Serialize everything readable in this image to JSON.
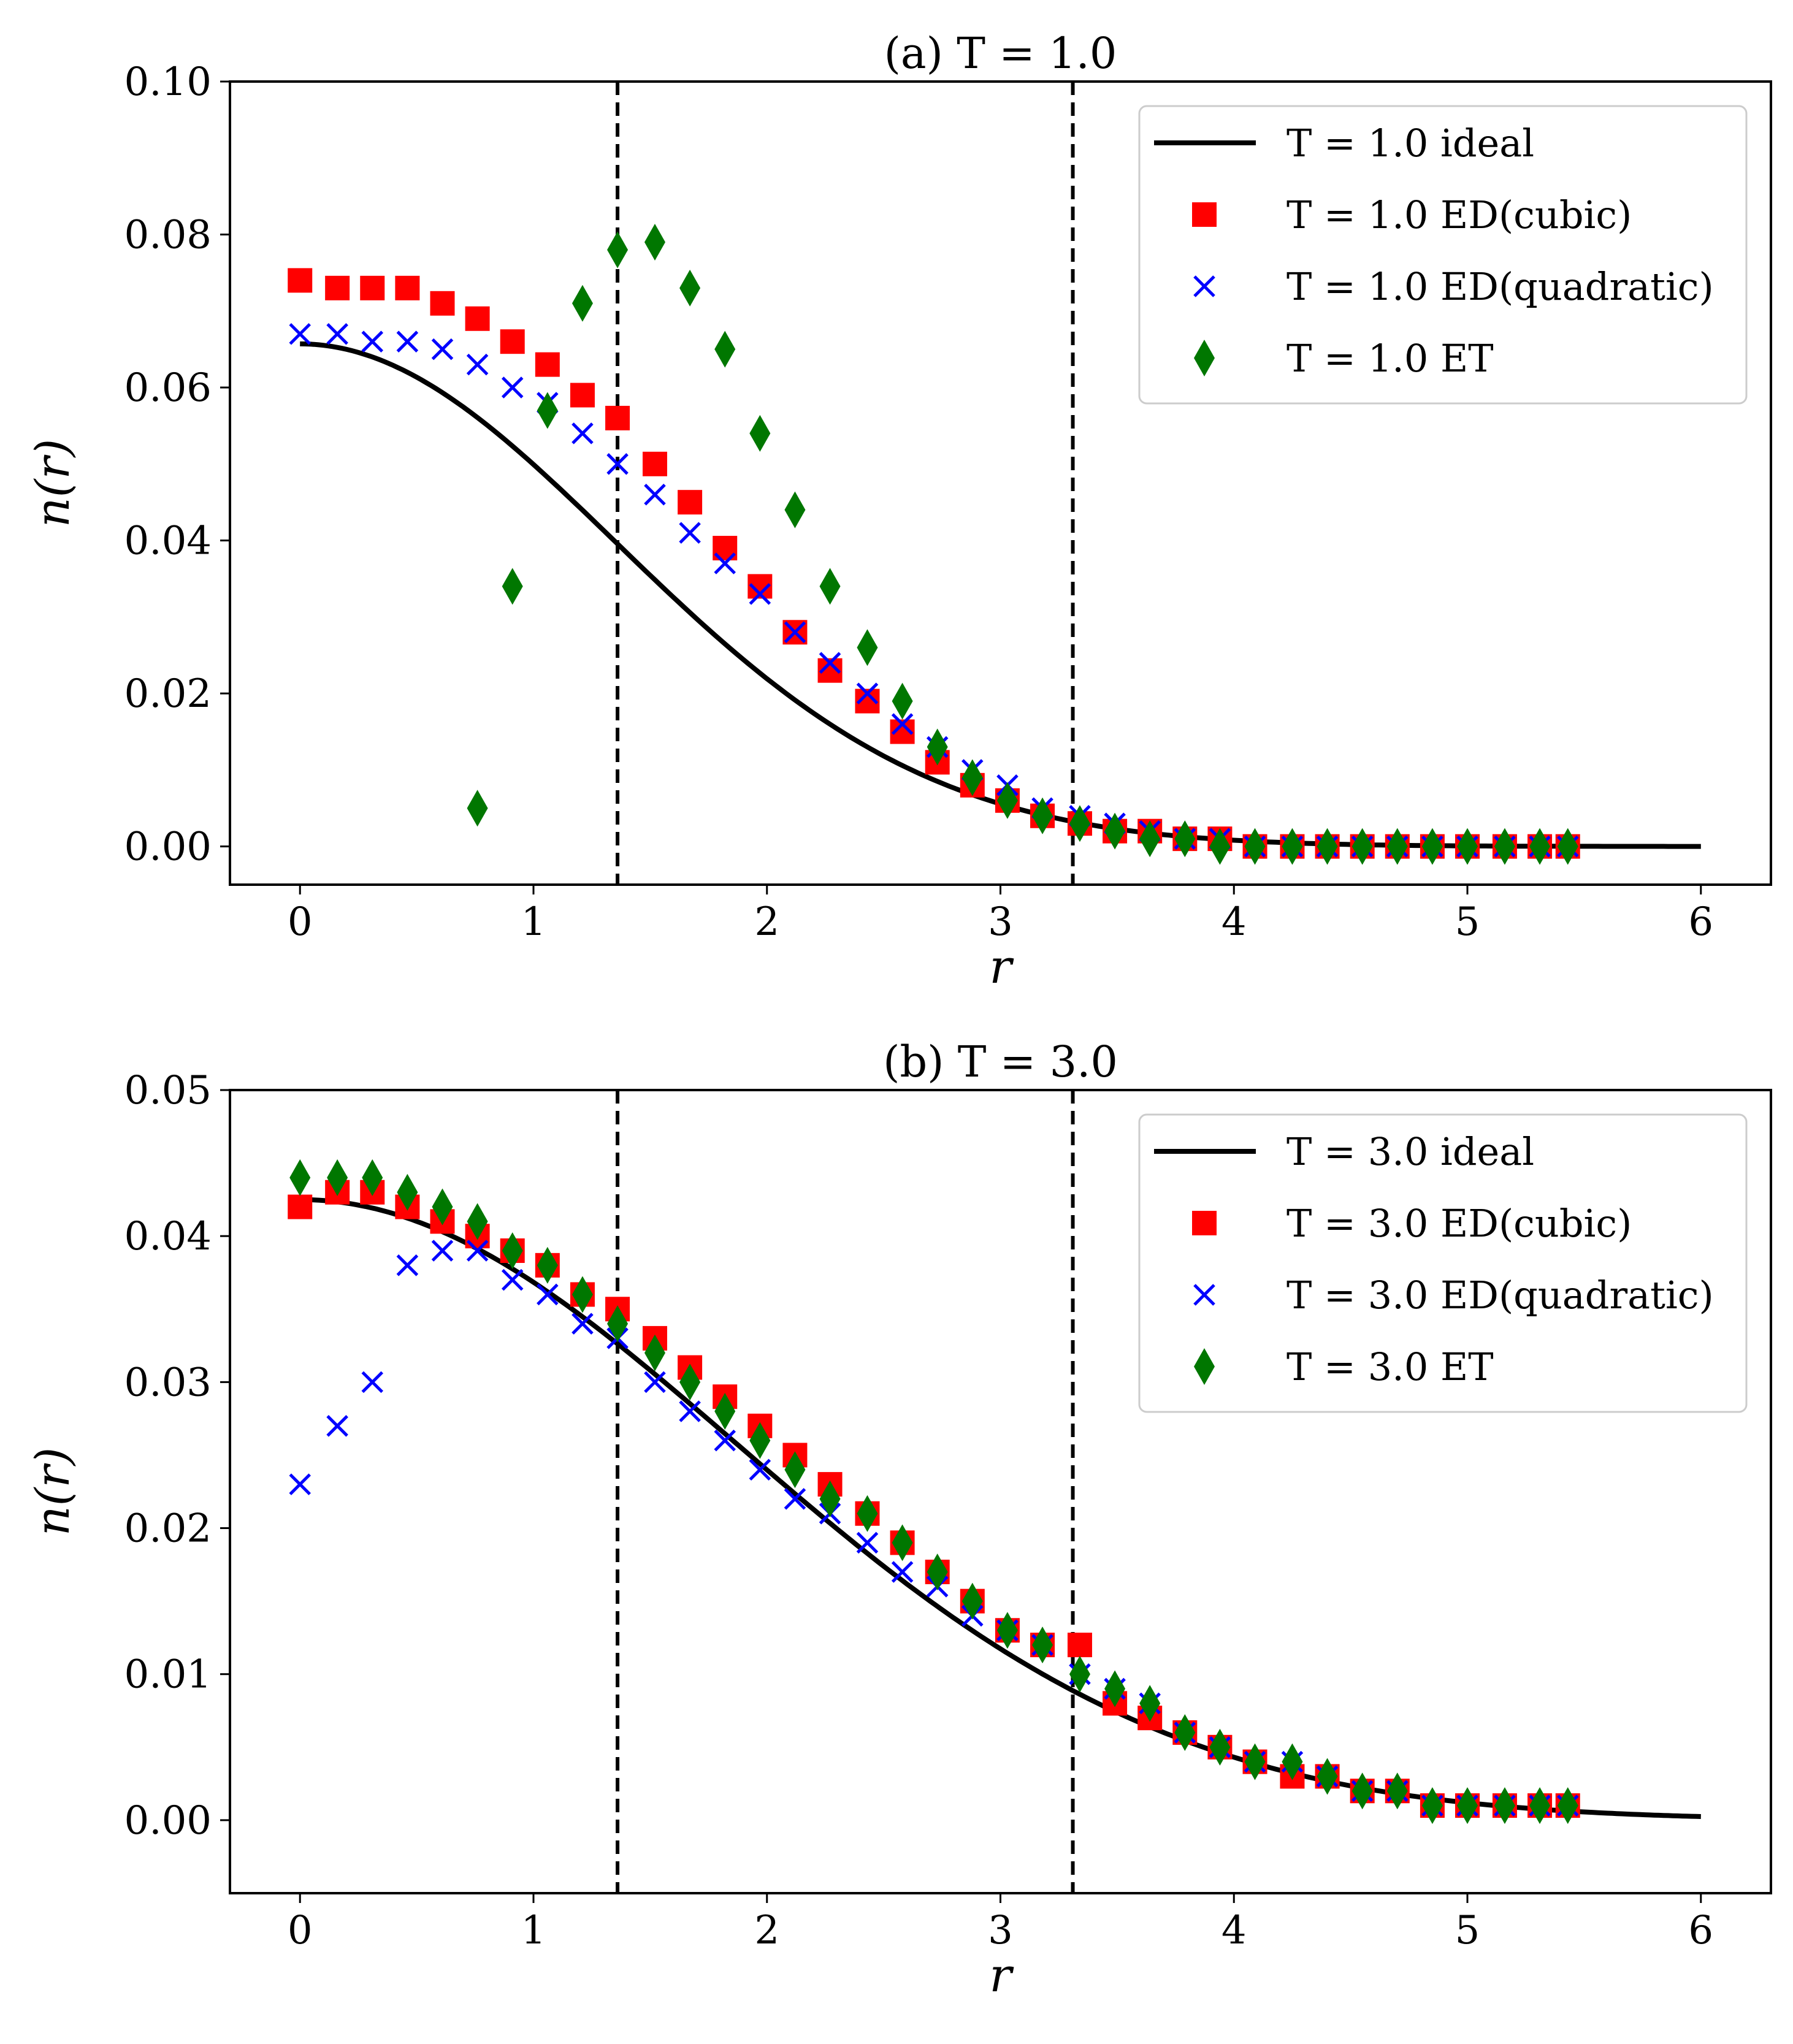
{
  "colors": {
    "ideal": "#000000",
    "cubic": "#ff0000",
    "quadratic": "#0000ff",
    "et": "#007700",
    "vline": "#000000",
    "legend_edge": "#cccccc"
  },
  "chart_data": [
    {
      "type": "line",
      "title": "(a) T = 1.0",
      "xlabel": "r",
      "ylabel": "n(r)",
      "xlim": [
        -0.3,
        6.3
      ],
      "ylim": [
        -0.005,
        0.1
      ],
      "xticks": [
        0,
        1,
        2,
        3,
        4,
        5,
        6
      ],
      "xtick_labels": [
        "0",
        "1",
        "2",
        "3",
        "4",
        "5",
        "6"
      ],
      "yticks": [
        0.0,
        0.02,
        0.04,
        0.06,
        0.08,
        0.1
      ],
      "ytick_labels": [
        "0.00",
        "0.02",
        "0.04",
        "0.06",
        "0.08",
        "0.10"
      ],
      "legend_position": "top-right",
      "vlines": [
        1.36,
        3.31
      ],
      "ideal": {
        "name": "T = 1.0 ideal",
        "amp": 0.0657,
        "sigma": 1.35,
        "x_max": 6.0
      },
      "series": [
        {
          "name": "T = 1.0 ED(cubic)",
          "marker": "square",
          "color_key": "cubic",
          "x": [
            0.0,
            0.16,
            0.31,
            0.46,
            0.61,
            0.76,
            0.91,
            1.06,
            1.21,
            1.36,
            1.52,
            1.67,
            1.82,
            1.97,
            2.12,
            2.27,
            2.43,
            2.58,
            2.73,
            2.88,
            3.03,
            3.18,
            3.34,
            3.49,
            3.64,
            3.79,
            3.94,
            4.09,
            4.25,
            4.4,
            4.55,
            4.7,
            4.85,
            5.0,
            5.16,
            5.31,
            5.43
          ],
          "y": [
            0.074,
            0.073,
            0.073,
            0.073,
            0.071,
            0.069,
            0.066,
            0.063,
            0.059,
            0.056,
            0.05,
            0.045,
            0.039,
            0.034,
            0.028,
            0.023,
            0.019,
            0.015,
            0.011,
            0.008,
            0.006,
            0.004,
            0.003,
            0.002,
            0.002,
            0.001,
            0.001,
            0.0,
            0.0,
            0.0,
            0.0,
            0.0,
            0.0,
            0.0,
            0.0,
            0.0,
            0.0
          ]
        },
        {
          "name": "T = 1.0 ED(quadratic)",
          "marker": "x",
          "color_key": "quadratic",
          "x": [
            0.0,
            0.16,
            0.31,
            0.46,
            0.61,
            0.76,
            0.91,
            1.06,
            1.21,
            1.36,
            1.52,
            1.67,
            1.82,
            1.97,
            2.12,
            2.27,
            2.43,
            2.58,
            2.73,
            2.88,
            3.03,
            3.18,
            3.34,
            3.49,
            3.64,
            3.79,
            3.94,
            4.09,
            4.25,
            4.4,
            4.55,
            4.7,
            4.85,
            5.0,
            5.16,
            5.31,
            5.43
          ],
          "y": [
            0.067,
            0.067,
            0.066,
            0.066,
            0.065,
            0.063,
            0.06,
            0.058,
            0.054,
            0.05,
            0.046,
            0.041,
            0.037,
            0.033,
            0.028,
            0.024,
            0.02,
            0.016,
            0.013,
            0.01,
            0.008,
            0.005,
            0.004,
            0.003,
            0.002,
            0.001,
            0.001,
            0.0,
            0.0,
            0.0,
            0.0,
            0.0,
            0.0,
            0.0,
            0.0,
            0.0,
            0.0
          ]
        },
        {
          "name": "T = 1.0 ET",
          "marker": "diamond",
          "color_key": "et",
          "x": [
            0.76,
            0.91,
            1.06,
            1.21,
            1.36,
            1.52,
            1.67,
            1.82,
            1.97,
            2.12,
            2.27,
            2.43,
            2.58,
            2.73,
            2.88,
            3.03,
            3.18,
            3.34,
            3.49,
            3.64,
            3.79,
            3.94,
            4.09,
            4.25,
            4.4,
            4.55,
            4.7,
            4.85,
            5.0,
            5.16,
            5.31,
            5.43
          ],
          "y": [
            0.005,
            0.034,
            0.057,
            0.071,
            0.078,
            0.079,
            0.073,
            0.065,
            0.054,
            0.044,
            0.034,
            0.026,
            0.019,
            0.013,
            0.009,
            0.006,
            0.004,
            0.003,
            0.002,
            0.001,
            0.001,
            0.0,
            0.0,
            0.0,
            0.0,
            0.0,
            0.0,
            0.0,
            0.0,
            0.0,
            0.0,
            0.0
          ]
        }
      ]
    },
    {
      "type": "line",
      "title": "(b) T = 3.0",
      "xlabel": "r",
      "ylabel": "n(r)",
      "xlim": [
        -0.3,
        6.3
      ],
      "ylim": [
        -0.005,
        0.05
      ],
      "xticks": [
        0,
        1,
        2,
        3,
        4,
        5,
        6
      ],
      "xtick_labels": [
        "0",
        "1",
        "2",
        "3",
        "4",
        "5",
        "6"
      ],
      "yticks": [
        0.0,
        0.01,
        0.02,
        0.03,
        0.04,
        0.05
      ],
      "ytick_labels": [
        "0.00",
        "0.01",
        "0.02",
        "0.03",
        "0.04",
        "0.05"
      ],
      "legend_position": "top-right",
      "vlines": [
        1.36,
        3.31
      ],
      "ideal": {
        "name": "T = 3.0 ideal",
        "amp": 0.0425,
        "sigma": 1.87,
        "x_max": 6.0
      },
      "series": [
        {
          "name": "T = 3.0 ED(cubic)",
          "marker": "square",
          "color_key": "cubic",
          "x": [
            0.0,
            0.16,
            0.31,
            0.46,
            0.61,
            0.76,
            0.91,
            1.06,
            1.21,
            1.36,
            1.52,
            1.67,
            1.82,
            1.97,
            2.12,
            2.27,
            2.43,
            2.58,
            2.73,
            2.88,
            3.03,
            3.18,
            3.34,
            3.49,
            3.64,
            3.79,
            3.94,
            4.09,
            4.25,
            4.4,
            4.55,
            4.7,
            4.85,
            5.0,
            5.16,
            5.31,
            5.43
          ],
          "y": [
            0.042,
            0.043,
            0.043,
            0.042,
            0.041,
            0.04,
            0.039,
            0.038,
            0.036,
            0.035,
            0.033,
            0.031,
            0.029,
            0.027,
            0.025,
            0.023,
            0.021,
            0.019,
            0.017,
            0.015,
            0.013,
            0.012,
            0.012,
            0.008,
            0.007,
            0.006,
            0.005,
            0.004,
            0.003,
            0.003,
            0.002,
            0.002,
            0.001,
            0.001,
            0.001,
            0.001,
            0.001
          ]
        },
        {
          "name": "T = 3.0 ED(quadratic)",
          "marker": "x",
          "color_key": "quadratic",
          "x": [
            0.0,
            0.16,
            0.31,
            0.46,
            0.61,
            0.76,
            0.91,
            1.06,
            1.21,
            1.36,
            1.52,
            1.67,
            1.82,
            1.97,
            2.12,
            2.27,
            2.43,
            2.58,
            2.73,
            2.88,
            3.03,
            3.18,
            3.34,
            3.49,
            3.64,
            3.79,
            3.94,
            4.09,
            4.25,
            4.4,
            4.55,
            4.7,
            4.85,
            5.0,
            5.16,
            5.31,
            5.43
          ],
          "y": [
            0.023,
            0.027,
            0.03,
            0.038,
            0.039,
            0.039,
            0.037,
            0.036,
            0.034,
            0.033,
            0.03,
            0.028,
            0.026,
            0.024,
            0.022,
            0.021,
            0.019,
            0.017,
            0.016,
            0.014,
            0.013,
            0.012,
            0.01,
            0.009,
            0.008,
            0.006,
            0.005,
            0.004,
            0.004,
            0.003,
            0.002,
            0.002,
            0.001,
            0.001,
            0.001,
            0.001,
            0.001
          ]
        },
        {
          "name": "T = 3.0 ET",
          "marker": "diamond",
          "color_key": "et",
          "x": [
            0.0,
            0.16,
            0.31,
            0.46,
            0.61,
            0.76,
            0.91,
            1.06,
            1.21,
            1.36,
            1.52,
            1.67,
            1.82,
            1.97,
            2.12,
            2.27,
            2.43,
            2.58,
            2.73,
            2.88,
            3.03,
            3.18,
            3.34,
            3.49,
            3.64,
            3.79,
            3.94,
            4.09,
            4.25,
            4.4,
            4.55,
            4.7,
            4.85,
            5.0,
            5.16,
            5.31,
            5.43
          ],
          "y": [
            0.044,
            0.044,
            0.044,
            0.043,
            0.042,
            0.041,
            0.039,
            0.038,
            0.036,
            0.034,
            0.032,
            0.03,
            0.028,
            0.026,
            0.024,
            0.022,
            0.021,
            0.019,
            0.017,
            0.015,
            0.013,
            0.012,
            0.01,
            0.009,
            0.008,
            0.006,
            0.005,
            0.004,
            0.004,
            0.003,
            0.002,
            0.002,
            0.001,
            0.001,
            0.001,
            0.001,
            0.001
          ]
        }
      ]
    }
  ]
}
